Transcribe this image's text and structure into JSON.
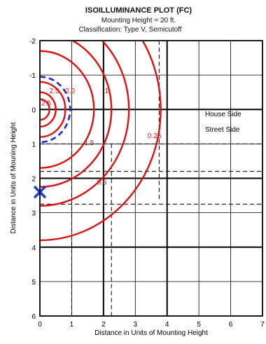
{
  "chart_data": {
    "type": "contour",
    "title": "ISOILLUMINANCE PLOT (FC)",
    "subtitle_lines": [
      "Mounting Height = 20 ft.",
      "Classification: Type V, Semicutoff"
    ],
    "xlabel": "Distance in Units of Mounting Height",
    "ylabel": "Distance in Units of Mouning Height",
    "xlim": [
      0,
      7
    ],
    "ylim": [
      -2,
      6
    ],
    "y_inverted": true,
    "x_ticks": [
      "0",
      "1",
      "2",
      "3",
      "4",
      "5",
      "6",
      "7"
    ],
    "y_ticks": [
      "-2",
      "-1",
      "0",
      "1",
      "2",
      "3",
      "4",
      "5",
      "6"
    ],
    "major_grid_x": [
      2,
      4
    ],
    "major_grid_y": [
      0,
      2,
      4
    ],
    "region_labels": [
      "House Side",
      "Street Side"
    ],
    "luminaire_position": [
      0,
      2.4
    ],
    "contours": [
      {
        "label": "2.5",
        "radius": 0.3,
        "label_at": [
          0.2,
          -0.2
        ],
        "color": "#dd1111",
        "style": "solid"
      },
      {
        "label": "2.5",
        "radius": 0.5,
        "label_at": [
          0.45,
          -0.55
        ],
        "color": "#dd1111",
        "style": "solid"
      },
      {
        "label": "2.0",
        "radius": 0.8,
        "label_at": [
          0.95,
          -0.55
        ],
        "color": "#dd1111",
        "style": "solid"
      },
      {
        "label": "",
        "radius": 0.95,
        "color": "#2222dd",
        "style": "dashed"
      },
      {
        "label": "1",
        "radius": 2.25,
        "label_at": [
          2.1,
          -0.55
        ],
        "color": "#dd1111",
        "style": "solid"
      },
      {
        "label": "1.5",
        "radius": 1.7,
        "label_at": [
          1.55,
          0.95
        ],
        "color": "#dd1111",
        "style": "solid"
      },
      {
        "label": "0.5",
        "radius": 2.8,
        "label_at": [
          1.95,
          2.1
        ],
        "color": "#dd1111",
        "style": "solid"
      },
      {
        "label": "0.25",
        "radius": 3.8,
        "label_at": [
          3.6,
          0.75
        ],
        "color": "#dd1111",
        "style": "solid"
      }
    ],
    "dashed_lines": {
      "vertical": [
        {
          "x": 1,
          "from": 1,
          "to": 6
        },
        {
          "x": 2.25,
          "from": 1,
          "to": 6
        },
        {
          "x": 3.75,
          "from": -2,
          "to": 2.6
        }
      ],
      "horizontal": [
        {
          "y": 1,
          "from": 0,
          "to": 7
        },
        {
          "y": 1.8,
          "from": 0,
          "to": 7
        },
        {
          "y": 2.75,
          "from": 0,
          "to": 7
        }
      ]
    },
    "grid": true
  }
}
